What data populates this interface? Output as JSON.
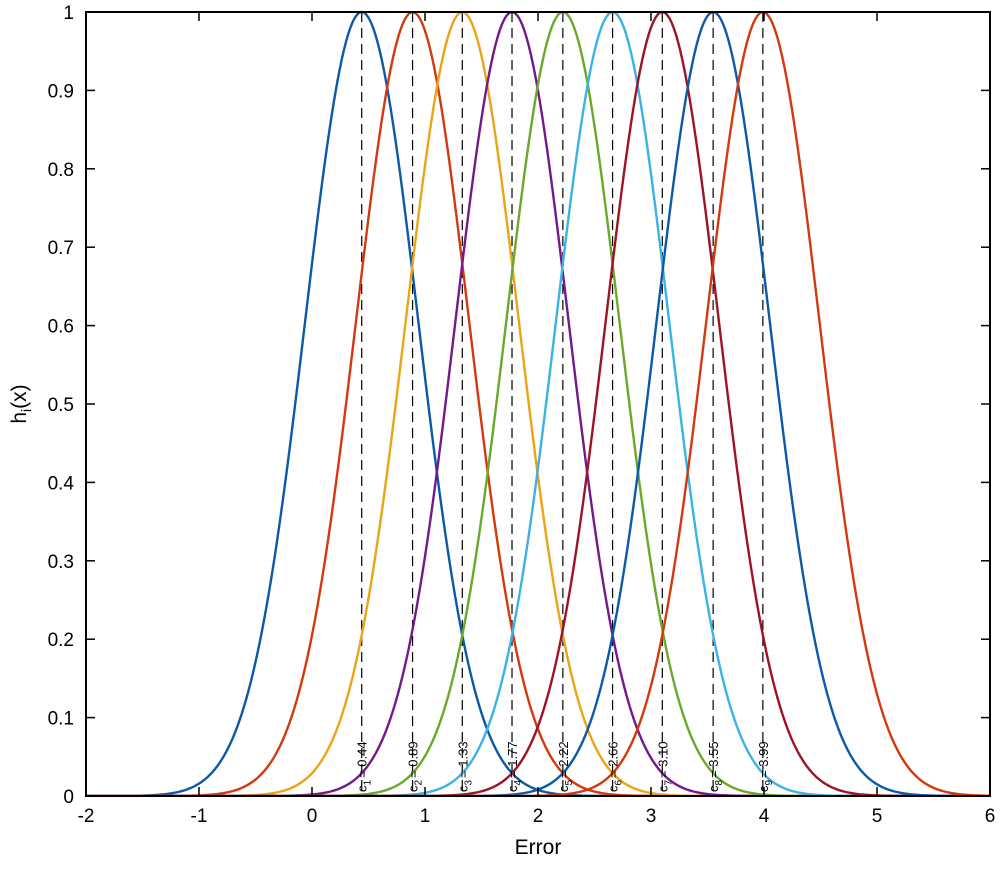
{
  "chart_data": {
    "type": "line",
    "xlabel": "Error",
    "ylabel": "h",
    "ylabel_sub": "i",
    "ylabel_suffix": "(x)",
    "xlim": [
      -2,
      6
    ],
    "ylim": [
      0,
      1
    ],
    "xticks": [
      -2,
      -1,
      0,
      1,
      2,
      3,
      4,
      5,
      6
    ],
    "yticks": [
      0,
      0.1,
      0.2,
      0.3,
      0.4,
      0.5,
      0.6,
      0.7,
      0.8,
      0.9,
      1
    ],
    "grid": false,
    "legend": "none",
    "function": "gaussian",
    "sigma": 0.5,
    "series": [
      {
        "center": 0.44,
        "label_sub": "1",
        "label_value": "= 0.44",
        "color": "#0b5aa8"
      },
      {
        "center": 0.89,
        "label_sub": "2",
        "label_value": "= 0.89",
        "color": "#d23a0e"
      },
      {
        "center": 1.33,
        "label_sub": "3",
        "label_value": "= 1.33",
        "color": "#eca417"
      },
      {
        "center": 1.77,
        "label_sub": "4",
        "label_value": "= 1.77",
        "color": "#74198b"
      },
      {
        "center": 2.22,
        "label_sub": "5",
        "label_value": "= 2.22",
        "color": "#6ba92a"
      },
      {
        "center": 2.66,
        "label_sub": "6",
        "label_value": "= 2.66",
        "color": "#3bb2e8"
      },
      {
        "center": 3.1,
        "label_sub": "7",
        "label_value": "= 3.10",
        "color": "#9c1527"
      },
      {
        "center": 3.55,
        "label_sub": "8",
        "label_value": "= 3.55",
        "color": "#0b5aa8"
      },
      {
        "center": 3.99,
        "label_sub": "9",
        "label_value": "= 3.99",
        "color": "#d23a0e"
      }
    ],
    "center_label_prefix": "c",
    "center_line_color": "#000000"
  }
}
